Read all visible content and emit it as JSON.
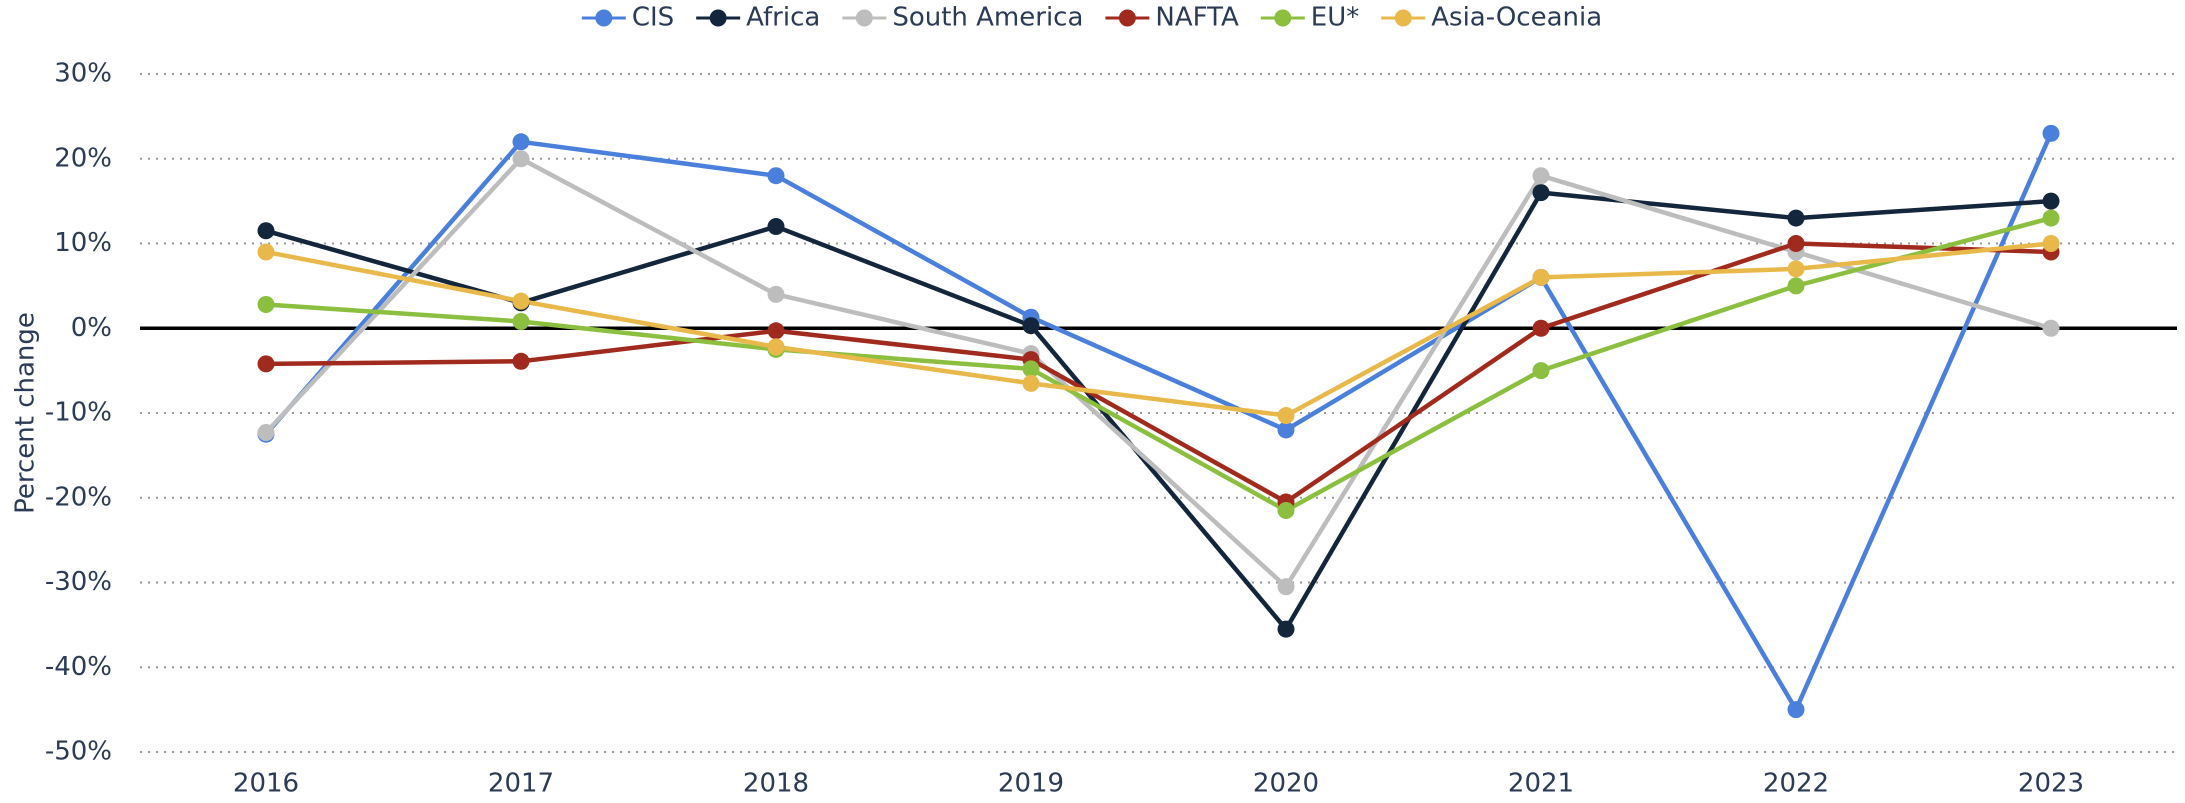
{
  "chart_data": {
    "type": "line",
    "categories": [
      "2016",
      "2017",
      "2018",
      "2019",
      "2020",
      "2021",
      "2022",
      "2023"
    ],
    "y_label": "Percent change",
    "ylim": [
      -50,
      30
    ],
    "yticks": [
      {
        "value": -50,
        "label": "-50%"
      },
      {
        "value": -40,
        "label": "-40%"
      },
      {
        "value": -30,
        "label": "-30%"
      },
      {
        "value": -20,
        "label": "-20%"
      },
      {
        "value": -10,
        "label": "-10%"
      },
      {
        "value": 0,
        "label": "0%"
      },
      {
        "value": 10,
        "label": "10%"
      },
      {
        "value": 20,
        "label": "20%"
      },
      {
        "value": 30,
        "label": "30%"
      }
    ],
    "grid": true,
    "legend": "top",
    "series": [
      {
        "name": "CIS",
        "color": "#4a7fdc",
        "values": [
          -12.5,
          22,
          18,
          1.3,
          -12,
          6,
          -45,
          23
        ]
      },
      {
        "name": "Africa",
        "color": "#14263b",
        "values": [
          11.5,
          3,
          12,
          0.3,
          -35.5,
          16,
          13,
          15
        ]
      },
      {
        "name": "South America",
        "color": "#bdbdbd",
        "values": [
          -12.3,
          20,
          4,
          -3,
          -30.5,
          18,
          9,
          0
        ]
      },
      {
        "name": "NAFTA",
        "color": "#a02a1e",
        "values": [
          -4.2,
          -3.9,
          -0.3,
          -3.7,
          -20.5,
          0,
          10,
          9
        ]
      },
      {
        "name": "EU*",
        "color": "#8cbf3f",
        "values": [
          2.8,
          0.8,
          -2.5,
          -4.8,
          -21.5,
          -5,
          5,
          13
        ]
      },
      {
        "name": "Asia-Oceania",
        "color": "#e8b94a",
        "values": [
          9,
          3.2,
          -2.2,
          -6.5,
          -10.3,
          6,
          7,
          10
        ]
      }
    ]
  }
}
